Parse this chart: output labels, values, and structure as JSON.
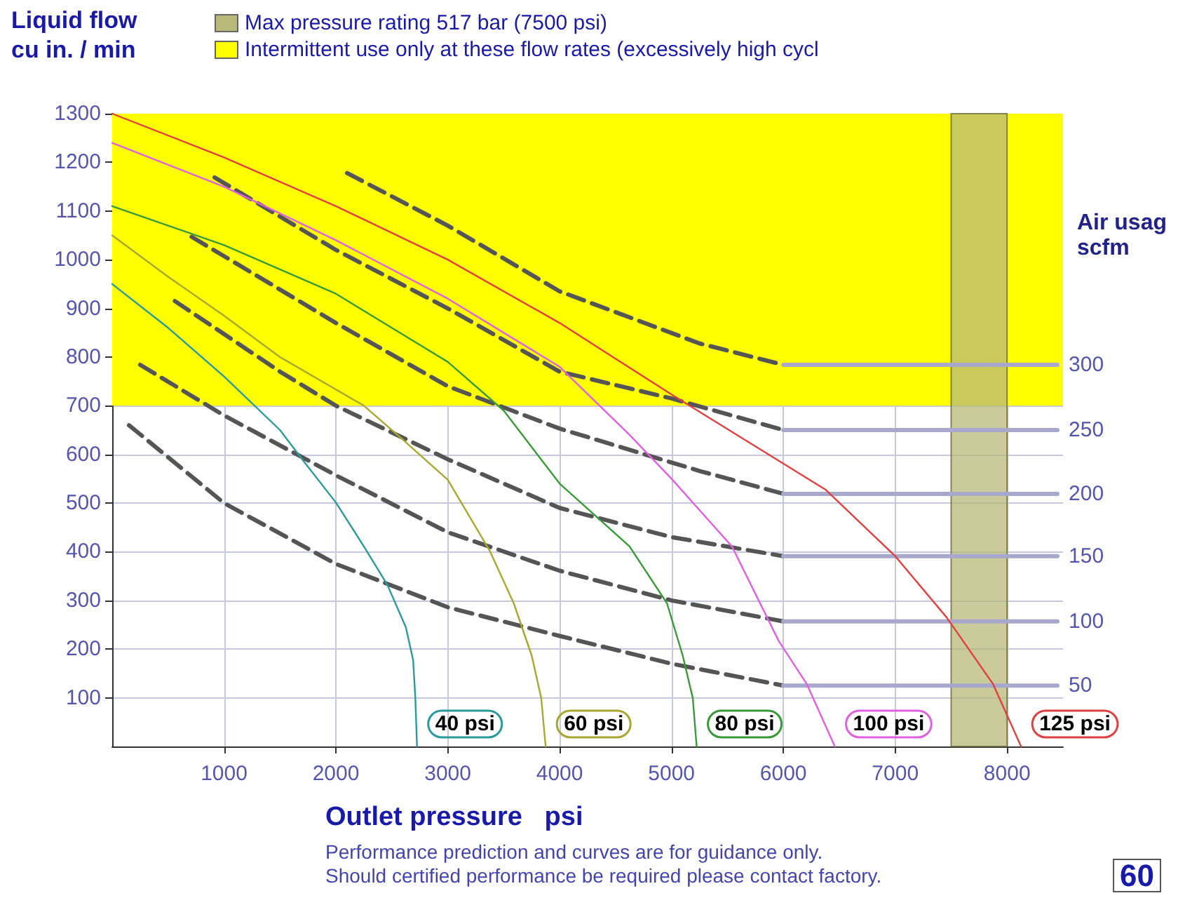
{
  "chart_data": {
    "type": "line",
    "ylabel": "Liquid flow\ncu in. / min",
    "xlabel": "Outlet pressure   psi",
    "y2label": "Air usag\nscfm",
    "xlim": [
      0,
      8500
    ],
    "xticks": [
      1000,
      2000,
      3000,
      4000,
      5000,
      6000,
      7000,
      8000
    ],
    "ylim": [
      0,
      1300
    ],
    "yticks": [
      100,
      200,
      300,
      400,
      500,
      600,
      700,
      800,
      900,
      1000,
      1100,
      1200,
      1300
    ],
    "grid": true,
    "legend": "top left",
    "marker": "none",
    "bands": [
      {
        "axis": "y",
        "from": 700,
        "to": 1300,
        "label": "Intermittent use only at these flow rates (excessively high cycl",
        "color": "#ffff00"
      },
      {
        "axis": "x",
        "from": 7500,
        "to": 8000,
        "label": "Max pressure rating 517 bar (7500 psi)",
        "color": "#b8b878"
      }
    ],
    "annotations": [
      "Performance prediction and curves are for guidance only.",
      "Should certified performance be required please contact factory.",
      "60"
    ],
    "series": [
      {
        "name": "40 psi",
        "color": "#2a9a9a",
        "line_style": "solid",
        "x": [
          0,
          500,
          1000,
          1500,
          1712,
          2000,
          2250,
          2460,
          2625,
          2690,
          2710,
          2725
        ],
        "values": [
          950,
          860,
          760,
          650,
          586,
          501,
          411,
          332,
          245,
          178,
          100,
          0
        ]
      },
      {
        "name": "60 psi",
        "color": "#a8a830",
        "line_style": "solid",
        "x": [
          0,
          500,
          1000,
          1500,
          2250,
          2600,
          3000,
          3375,
          3590,
          3750,
          3835,
          3875
        ],
        "values": [
          1050,
          965,
          885,
          800,
          700,
          630,
          548,
          402,
          294,
          187,
          100,
          0
        ]
      },
      {
        "name": "80 psi",
        "color": "#3a9a3a",
        "line_style": "solid",
        "x": [
          0,
          1000,
          2000,
          3000,
          3500,
          4000,
          4625,
          4960,
          5100,
          5190,
          5225
        ],
        "values": [
          1110,
          1030,
          930,
          790,
          690,
          540,
          411,
          294,
          187,
          100,
          0
        ]
      },
      {
        "name": "100 psi",
        "color": "#e060e0",
        "line_style": "solid",
        "x": [
          0,
          1000,
          2000,
          3000,
          4000,
          4625,
          5000,
          5540,
          5960,
          6210,
          6460
        ],
        "values": [
          1240,
          1150,
          1040,
          920,
          780,
          640,
          550,
          411,
          216,
          128,
          0
        ]
      },
      {
        "name": "125 psi",
        "color": "#e04040",
        "line_style": "solid",
        "x": [
          0,
          1000,
          2000,
          3000,
          4000,
          5000,
          6375,
          7000,
          7460,
          7875,
          8125
        ],
        "values": [
          1300,
          1210,
          1110,
          1000,
          870,
          723,
          528,
          391,
          265,
          128,
          0
        ]
      },
      {
        "color": "#555555",
        "line_style": "dashed",
        "x": [
          2100,
          3000,
          4000,
          5250,
          6000
        ],
        "values": [
          1178,
          1070,
          935,
          828,
          784
        ]
      },
      {
        "color": "#555555",
        "line_style": "dashed",
        "x": [
          915,
          2000,
          3000,
          4000,
          5000,
          6000
        ],
        "values": [
          1169,
          1020,
          900,
          770,
          715,
          650
        ]
      },
      {
        "color": "#555555",
        "line_style": "dashed",
        "x": [
          710,
          2000,
          3000,
          4000,
          5250,
          6000
        ],
        "values": [
          1047,
          870,
          740,
          653,
          566,
          519
        ]
      },
      {
        "color": "#555555",
        "line_style": "dashed",
        "x": [
          560,
          1500,
          2000,
          3000,
          4000,
          5000,
          6000
        ],
        "values": [
          915,
          770,
          700,
          590,
          490,
          430,
          391
        ]
      },
      {
        "color": "#555555",
        "line_style": "dashed",
        "x": [
          250,
          1000,
          2000,
          3000,
          4000,
          5000,
          6000
        ],
        "values": [
          784,
          680,
          557,
          440,
          361,
          300,
          257
        ]
      },
      {
        "color": "#555555",
        "line_style": "dashed",
        "x": [
          150,
          1000,
          2000,
          3000,
          4000,
          5000,
          6000
        ],
        "values": [
          660,
          500,
          375,
          286,
          227,
          170,
          125
        ]
      },
      {
        "name": "300",
        "color": "#a8a8cc",
        "line_style": "solid",
        "x": [
          6000,
          8450
        ],
        "values": [
          784,
          784
        ]
      },
      {
        "name": "250",
        "color": "#a8a8cc",
        "line_style": "solid",
        "x": [
          6000,
          8450
        ],
        "values": [
          650,
          650
        ]
      },
      {
        "name": "200",
        "color": "#a8a8cc",
        "line_style": "solid",
        "x": [
          6000,
          8450
        ],
        "values": [
          519,
          519
        ]
      },
      {
        "name": "150",
        "color": "#a8a8cc",
        "line_style": "solid",
        "x": [
          6000,
          8450
        ],
        "values": [
          391,
          391
        ]
      },
      {
        "name": "100",
        "color": "#a8a8cc",
        "line_style": "solid",
        "x": [
          6000,
          8450
        ],
        "values": [
          257,
          257
        ]
      },
      {
        "name": "50",
        "color": "#a8a8cc",
        "line_style": "solid",
        "x": [
          6000,
          8450
        ],
        "values": [
          125,
          125
        ]
      }
    ]
  }
}
